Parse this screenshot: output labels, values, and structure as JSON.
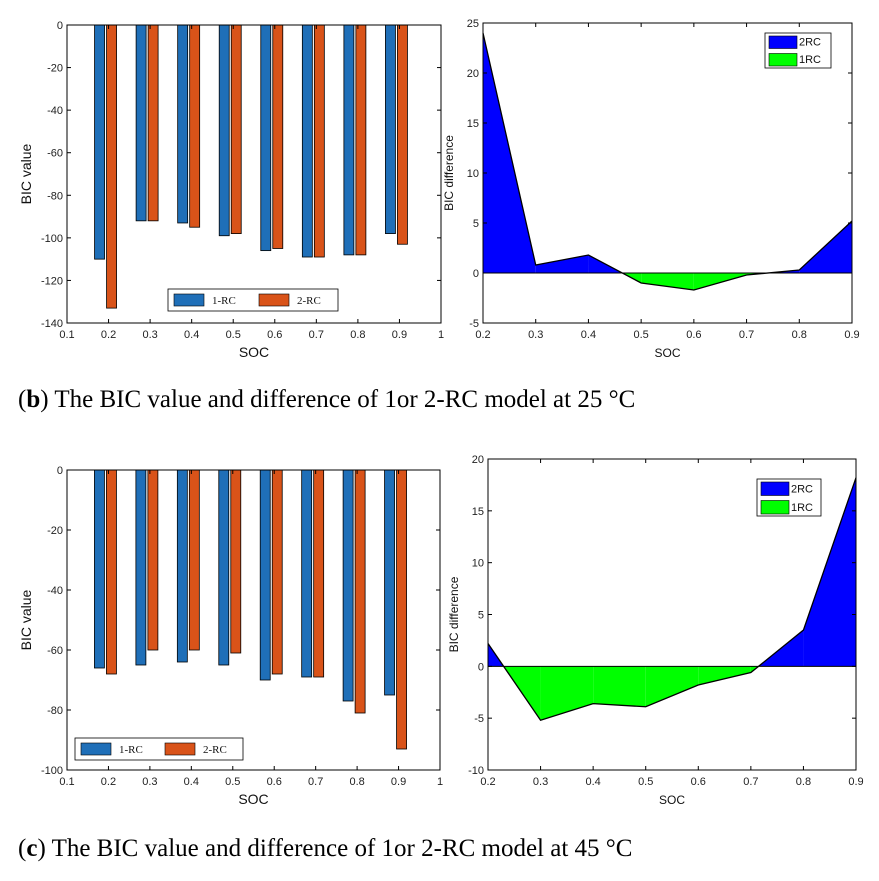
{
  "chart_data": [
    {
      "id": "b-left",
      "type": "bar",
      "xlabel": "SOC",
      "ylabel": "BIC value",
      "xlim": [
        0.1,
        1
      ],
      "ylim": [
        -140,
        0
      ],
      "xticks": [
        "0.1",
        "0.2",
        "0.3",
        "0.4",
        "0.5",
        "0.6",
        "0.7",
        "0.8",
        "0.9",
        "1"
      ],
      "yticks": [
        "0",
        "-20",
        "-40",
        "-60",
        "-80",
        "-100",
        "-120",
        "-140"
      ],
      "categories": [
        0.2,
        0.3,
        0.4,
        0.5,
        0.6,
        0.7,
        0.8,
        0.9
      ],
      "series": [
        {
          "name": "1-RC",
          "color": "#1f6fb8",
          "values": [
            -110,
            -92,
            -93,
            -99,
            -106,
            -109,
            -108,
            -98
          ]
        },
        {
          "name": "2-RC",
          "color": "#d95319",
          "values": [
            -133,
            -92,
            -95,
            -98,
            -105,
            -109,
            -108,
            -103
          ]
        }
      ],
      "legend": "bottom-center"
    },
    {
      "id": "b-right",
      "type": "area",
      "xlabel": "SOC",
      "ylabel": "BIC difference",
      "xlim": [
        0.2,
        0.9
      ],
      "ylim": [
        -5,
        25
      ],
      "xticks": [
        "0.2",
        "0.3",
        "0.4",
        "0.5",
        "0.6",
        "0.7",
        "0.8",
        "0.9"
      ],
      "yticks": [
        "25",
        "20",
        "15",
        "10",
        "5",
        "0",
        "-5"
      ],
      "x": [
        0.2,
        0.3,
        0.4,
        0.5,
        0.6,
        0.7,
        0.8,
        0.9
      ],
      "y": [
        24,
        0.8,
        1.8,
        -1,
        -1.7,
        -0.2,
        0.3,
        5.2
      ],
      "series": [
        {
          "name": "2RC",
          "color": "#0000ff"
        },
        {
          "name": "1RC",
          "color": "#00ff00"
        }
      ],
      "legend": "top-right"
    },
    {
      "id": "c-left",
      "type": "bar",
      "xlabel": "SOC",
      "ylabel": "BIC value",
      "xlim": [
        0.1,
        1
      ],
      "ylim": [
        -100,
        0
      ],
      "xticks": [
        "0.1",
        "0.2",
        "0.3",
        "0.4",
        "0.5",
        "0.6",
        "0.7",
        "0.8",
        "0.9",
        "1"
      ],
      "yticks": [
        "0",
        "-20",
        "-40",
        "-60",
        "-80",
        "-100"
      ],
      "categories": [
        0.2,
        0.3,
        0.4,
        0.5,
        0.6,
        0.7,
        0.8,
        0.9
      ],
      "series": [
        {
          "name": "1-RC",
          "color": "#1f6fb8",
          "values": [
            -66,
            -65,
            -64,
            -65,
            -70,
            -69,
            -77,
            -75
          ]
        },
        {
          "name": "2-RC",
          "color": "#d95319",
          "values": [
            -68,
            -60,
            -60,
            -61,
            -68,
            -69,
            -81,
            -93
          ]
        }
      ],
      "legend": "bottom-left"
    },
    {
      "id": "c-right",
      "type": "area",
      "xlabel": "SOC",
      "ylabel": "BIC difference",
      "xlim": [
        0.2,
        0.9
      ],
      "ylim": [
        -10,
        20
      ],
      "xticks": [
        "0.2",
        "0.3",
        "0.4",
        "0.5",
        "0.6",
        "0.7",
        "0.8",
        "0.9"
      ],
      "yticks": [
        "20",
        "15",
        "10",
        "5",
        "0",
        "-5",
        "-10"
      ],
      "x": [
        0.2,
        0.3,
        0.4,
        0.5,
        0.6,
        0.7,
        0.8,
        0.9
      ],
      "y": [
        2.2,
        -5.2,
        -3.6,
        -3.9,
        -1.8,
        -0.6,
        3.5,
        18.2
      ],
      "series": [
        {
          "name": "2RC",
          "color": "#0000ff"
        },
        {
          "name": "1RC",
          "color": "#00ff00"
        }
      ],
      "legend": "top-right"
    }
  ],
  "captions": {
    "b": {
      "letter": "b",
      "text": " The BIC value and difference of 1or 2-RC model at 25 °C"
    },
    "c": {
      "letter": "c",
      "text": " The BIC value and difference of 1or 2-RC model at 45 °C"
    }
  }
}
